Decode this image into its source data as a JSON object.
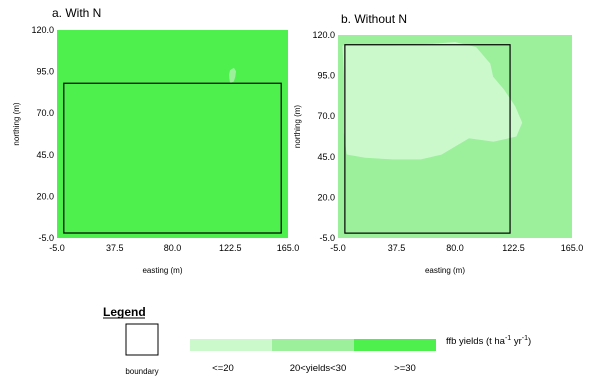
{
  "colors": {
    "high": "#4df04d",
    "mid": "#9cf09c",
    "low": "#ccf9cc",
    "boundary": "#000000"
  },
  "chart_data": [
    {
      "type": "heatmap",
      "title": "a. With N",
      "xlabel": "easting (m)",
      "ylabel": "northing (m)",
      "xlim": [
        -5.0,
        165.0
      ],
      "ylim": [
        -5.0,
        120.0
      ],
      "x_ticks": [
        "-5.0",
        "37.5",
        "80.0",
        "122.5",
        "165.0"
      ],
      "y_ticks": [
        "-5.0",
        "20.0",
        "45.0",
        "70.0",
        "95.0",
        "120.0"
      ],
      "background_class": ">=30",
      "zones": [
        {
          "class": "20<yields<30",
          "points": [
            [
              123,
              95.5
            ],
            [
              125,
              96.5
            ],
            [
              126,
              95
            ],
            [
              125.5,
              92
            ],
            [
              124.5,
              89.5
            ],
            [
              123,
              89
            ],
            [
              122.5,
              91
            ],
            [
              122.3,
              93
            ]
          ]
        }
      ],
      "boundary": {
        "x": [
          0,
          160
        ],
        "y": [
          -2,
          88
        ]
      }
    },
    {
      "type": "heatmap",
      "title": "b. Without N",
      "xlabel": "easting (m)",
      "ylabel": "northing (m)",
      "xlim": [
        -5.0,
        165.0
      ],
      "ylim": [
        -5.0,
        120.0
      ],
      "x_ticks": [
        "-5.0",
        "37.5",
        "80.0",
        "122.5",
        "165.0"
      ],
      "y_ticks": [
        "-5.0",
        "20.0",
        "45.0",
        "70.0",
        "95.0",
        "120.0"
      ],
      "background_class": "20<yields<30",
      "zones": [
        {
          "class": "<=20",
          "points": [
            [
              -1,
              113
            ],
            [
              33,
              113
            ],
            [
              64,
              114
            ],
            [
              80,
              115
            ],
            [
              95,
              112
            ],
            [
              105,
              102
            ],
            [
              107,
              94
            ],
            [
              115,
              86
            ],
            [
              123,
              76
            ],
            [
              128,
              66
            ],
            [
              124,
              58
            ],
            [
              108,
              55
            ],
            [
              90,
              57
            ],
            [
              80,
              52
            ],
            [
              70,
              47
            ],
            [
              55,
              44
            ],
            [
              35,
              44
            ],
            [
              15,
              45
            ],
            [
              2,
              47
            ],
            [
              0,
              60
            ],
            [
              0,
              95
            ]
          ]
        }
      ],
      "boundary": {
        "x": [
          0,
          120
        ],
        "y": [
          -2,
          114
        ]
      }
    }
  ],
  "legend": {
    "title": "Legend",
    "boundary_label": "boundary",
    "variable_label": "ffb yields (t ha",
    "exp1": "-1",
    "mid_label": " yr",
    "exp2": "-1",
    "end_label": ")",
    "classes": [
      "<=20",
      "20<yields<30",
      ">=30"
    ]
  }
}
